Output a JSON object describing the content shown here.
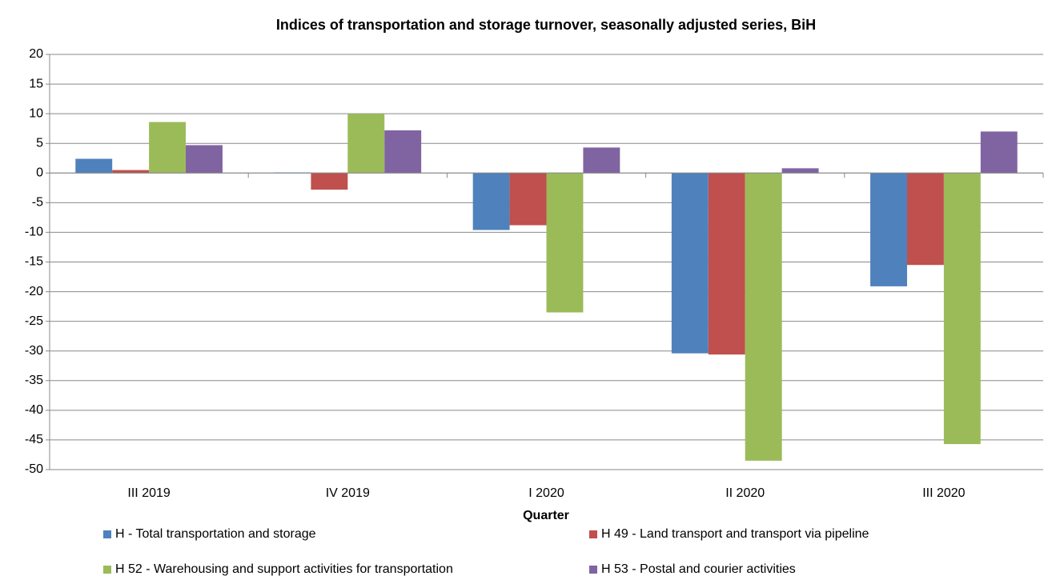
{
  "chart_data": {
    "type": "bar",
    "title": "Indices of transportation and storage turnover, seasonally adjusted series, BiH",
    "x_label": "Quarter",
    "categories": [
      "III 2019",
      "IV 2019",
      "I 2020",
      "II 2020",
      "III 2020"
    ],
    "series": [
      {
        "name": "H - Total transportation and storage",
        "color": "#4f81bd",
        "values": [
          2.4,
          0.1,
          -9.6,
          -30.4,
          -19.1
        ]
      },
      {
        "name": "H 49 -  Land transport and transport via pipeline",
        "color": "#c0504d",
        "values": [
          0.5,
          -2.8,
          -8.8,
          -30.6,
          -15.5
        ]
      },
      {
        "name": "H 52 - Warehousing and support activities for transportation",
        "color": "#9bbb59",
        "values": [
          8.6,
          10.0,
          -23.5,
          -48.5,
          -45.7
        ]
      },
      {
        "name": "H 53 - Postal and courier activities",
        "color": "#8064a2",
        "values": [
          4.7,
          7.2,
          4.3,
          0.8,
          7.0
        ]
      }
    ],
    "ylim": [
      -50,
      20
    ],
    "yticks": [
      -50,
      -45,
      -40,
      -35,
      -30,
      -25,
      -20,
      -15,
      -10,
      -5,
      0,
      5,
      10,
      15,
      20
    ],
    "grid": true,
    "legend": "bottom"
  }
}
